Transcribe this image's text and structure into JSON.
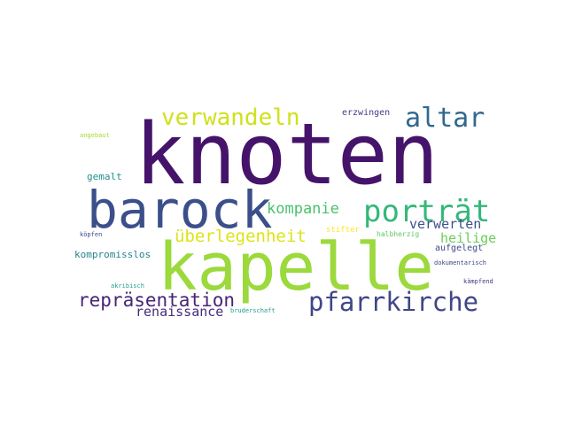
{
  "words": [
    {
      "text": "knoten",
      "color": "#45146a"
    },
    {
      "text": "kapelle",
      "color": "#9bd93c"
    },
    {
      "text": "barock",
      "color": "#3b4f8a"
    },
    {
      "text": "porträt",
      "color": "#35b779"
    },
    {
      "text": "pfarrkirche",
      "color": "#404688"
    },
    {
      "text": "altar",
      "color": "#31688e"
    },
    {
      "text": "verwandeln",
      "color": "#d0e11c"
    },
    {
      "text": "repräsentation",
      "color": "#482576"
    },
    {
      "text": "überlegenheit",
      "color": "#dde318"
    },
    {
      "text": "kompanie",
      "color": "#4ac16d"
    },
    {
      "text": "verwerten",
      "color": "#3b528b"
    },
    {
      "text": "heilige",
      "color": "#6ccd5a"
    },
    {
      "text": "renaissance",
      "color": "#472c7a"
    },
    {
      "text": "gemalt",
      "color": "#20928c"
    },
    {
      "text": "kompromisslos",
      "color": "#26828e"
    },
    {
      "text": "erzwingen",
      "color": "#424086"
    },
    {
      "text": "aufgelegt",
      "color": "#3e4989"
    },
    {
      "text": "stifter",
      "color": "#fde725"
    },
    {
      "text": "halbherzig",
      "color": "#5ec962"
    },
    {
      "text": "angebaut",
      "color": "#a2da37"
    },
    {
      "text": "köpfen",
      "color": "#3e4a89"
    },
    {
      "text": "akribisch",
      "color": "#1f9e89"
    },
    {
      "text": "bruderschaft",
      "color": "#1fa188"
    },
    {
      "text": "dokumentarisch",
      "color": "#3f4889"
    },
    {
      "text": "kämpfend",
      "color": "#443983"
    }
  ]
}
